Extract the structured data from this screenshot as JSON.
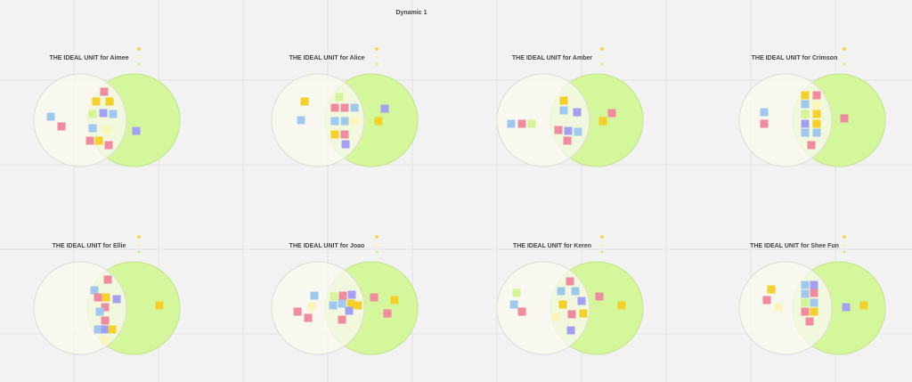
{
  "title": "Dynamic 1",
  "boards": [
    {
      "title": "THE IDEAL UNIT for Aimee"
    },
    {
      "title": "THE IDEAL UNIT for Alice"
    },
    {
      "title": "THE IDEAL UNIT for Amber"
    },
    {
      "title": "THE IDEAL UNIT for Crimson"
    },
    {
      "title": "THE IDEAL UNIT for Ellie"
    },
    {
      "title": "THE IDEAL UNIT for Joao"
    },
    {
      "title": "THE IDEAL UNIT for Keren"
    },
    {
      "title": "THE IDEAL UNIT for Shee Fun"
    }
  ]
}
